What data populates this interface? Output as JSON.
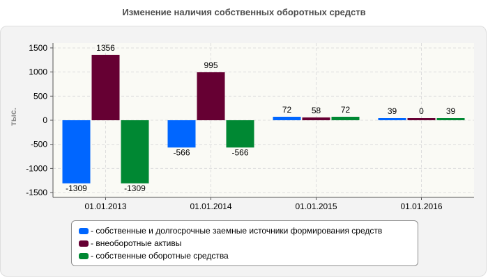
{
  "title": "Изменение наличия собственных оборотных средств",
  "chart_data": {
    "type": "bar",
    "title": "Изменение наличия собственных оборотных средств",
    "ylabel": "тыс.",
    "xlabel": "",
    "ylim": [
      -1600,
      1600
    ],
    "yticks": [
      1500,
      1000,
      500,
      0,
      -500,
      -1000,
      -1500
    ],
    "grid": true,
    "legend_position": "bottom",
    "categories": [
      "01.01.2013",
      "01.01.2014",
      "01.01.2015",
      "01.01.2016"
    ],
    "series": [
      {
        "name": "- собственные и долгосрочные заемные источники формирования средств",
        "color": "#0066ff",
        "values": [
          -1309,
          -566,
          72,
          39
        ]
      },
      {
        "name": "- внеоборотные активы",
        "color": "#660033",
        "values": [
          1356,
          995,
          58,
          0
        ]
      },
      {
        "name": "- собственные оборотные средства",
        "color": "#008833",
        "values": [
          -1309,
          -566,
          72,
          39
        ]
      }
    ]
  }
}
